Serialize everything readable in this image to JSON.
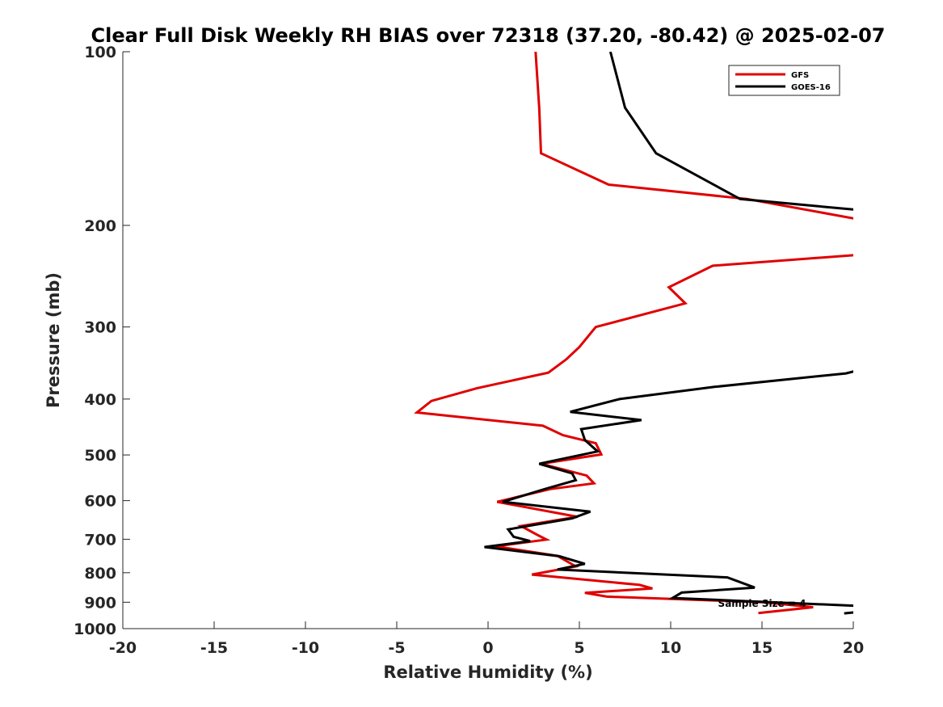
{
  "chart_data": {
    "type": "line",
    "title": "Clear Full Disk Weekly RH BIAS over 72318 (37.20, -80.42) @ 2025-02-07",
    "xlabel": "Relative Humidity (%)",
    "ylabel": "Pressure (mb)",
    "xlim": [
      -20,
      20
    ],
    "ylim": [
      100,
      1000
    ],
    "yscale": "log",
    "y_reversed": true,
    "x_ticks": [
      -20,
      -15,
      -10,
      -5,
      0,
      5,
      10,
      15,
      20
    ],
    "x_tick_labels": [
      "-20",
      "-15",
      "-10",
      "-5",
      "0",
      "5",
      "10",
      "15",
      "20"
    ],
    "y_ticks": [
      100,
      200,
      300,
      400,
      500,
      600,
      700,
      800,
      900,
      1000
    ],
    "y_tick_labels": [
      "100",
      "200",
      "300",
      "400",
      "500",
      "600",
      "700",
      "800",
      "900",
      "1000"
    ],
    "grid": false,
    "legend_position": "top-right",
    "annotation": "Sample Size = 4",
    "series": [
      {
        "name": "GFS",
        "color": "#e00000",
        "points": [
          [
            2.6,
            100
          ],
          [
            2.8,
            125
          ],
          [
            2.9,
            150
          ],
          [
            6.6,
            170
          ],
          [
            14.2,
            180
          ],
          [
            20.2,
            195
          ],
          [
            20.2,
            225
          ],
          [
            12.3,
            235
          ],
          [
            9.9,
            256
          ],
          [
            10.8,
            273
          ],
          [
            5.9,
            300
          ],
          [
            5.0,
            325
          ],
          [
            4.3,
            341
          ],
          [
            3.3,
            360
          ],
          [
            -0.6,
            383
          ],
          [
            -3.1,
            403
          ],
          [
            -3.9,
            422
          ],
          [
            3.0,
            445
          ],
          [
            4.1,
            462
          ],
          [
            5.9,
            477
          ],
          [
            6.2,
            499
          ],
          [
            2.9,
            518
          ],
          [
            5.4,
            543
          ],
          [
            5.8,
            560
          ],
          [
            3.4,
            573
          ],
          [
            0.5,
            603
          ],
          [
            4.9,
            640
          ],
          [
            1.8,
            664
          ],
          [
            2.7,
            688
          ],
          [
            3.2,
            701
          ],
          [
            0.4,
            720
          ],
          [
            3.8,
            748
          ],
          [
            4.8,
            780
          ],
          [
            2.4,
            806
          ],
          [
            8.3,
            840
          ],
          [
            9.0,
            852
          ],
          [
            5.3,
            867
          ],
          [
            6.5,
            880
          ],
          [
            15.0,
            900
          ],
          [
            17.8,
            918
          ],
          [
            14.8,
            940
          ]
        ]
      },
      {
        "name": "GOES-16",
        "color": "#000000",
        "points": [
          [
            6.7,
            100
          ],
          [
            7.5,
            125
          ],
          [
            9.2,
            150
          ],
          [
            13.8,
            180
          ],
          [
            20.2,
            188
          ],
          [
            20.2,
            357
          ],
          [
            19.6,
            361
          ],
          [
            12.4,
            381
          ],
          [
            7.2,
            400
          ],
          [
            4.5,
            421
          ],
          [
            8.4,
            435
          ],
          [
            5.1,
            451
          ],
          [
            5.3,
            471
          ],
          [
            6.0,
            493
          ],
          [
            2.8,
            518
          ],
          [
            4.6,
            538
          ],
          [
            4.8,
            553
          ],
          [
            3.1,
            573
          ],
          [
            0.8,
            603
          ],
          [
            5.6,
            627
          ],
          [
            4.6,
            644
          ],
          [
            1.1,
            673
          ],
          [
            1.4,
            693
          ],
          [
            2.3,
            705
          ],
          [
            -0.2,
            722
          ],
          [
            3.9,
            749
          ],
          [
            5.3,
            772
          ],
          [
            3.8,
            790
          ],
          [
            13.1,
            815
          ],
          [
            14.6,
            849
          ],
          [
            10.6,
            866
          ],
          [
            10.1,
            885
          ],
          [
            20.2,
            913
          ]
        ],
        "extra_segments": [
          [
            [
              19.5,
              941
            ],
            [
              20.2,
              936
            ]
          ]
        ]
      }
    ]
  }
}
